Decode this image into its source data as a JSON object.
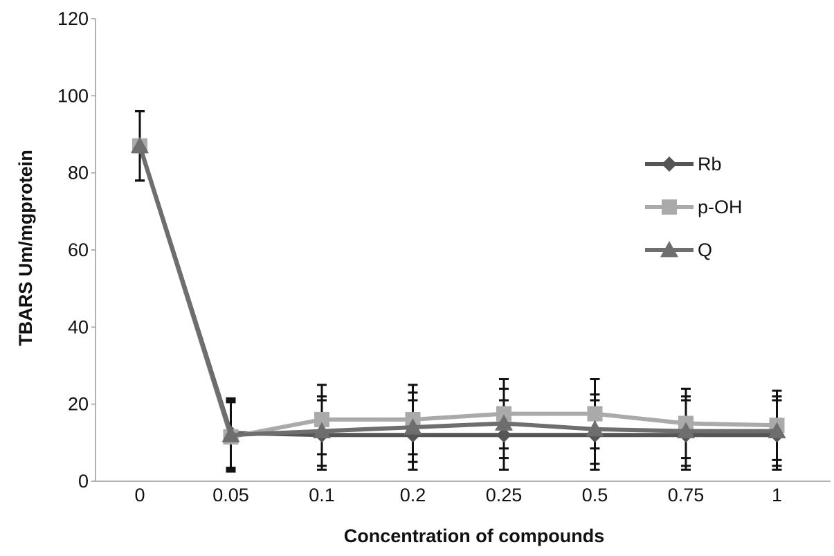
{
  "chart_data": {
    "type": "line",
    "title": "",
    "xlabel": "Concentration of compounds",
    "ylabel": "TBARS  Um/mgprotein",
    "categories": [
      "0",
      "0.05",
      "0.1",
      "0.2",
      "0.25",
      "0.5",
      "0.75",
      "1"
    ],
    "ylim": [
      0,
      120
    ],
    "yticks": [
      0,
      20,
      40,
      60,
      80,
      100,
      120
    ],
    "grid": false,
    "legend_position": "right",
    "series": [
      {
        "name": "Rb",
        "marker": "diamond",
        "color": "#555555",
        "values": [
          87,
          12.5,
          12,
          12,
          12,
          12,
          12,
          12
        ],
        "error": [
          9,
          9,
          9,
          9,
          9,
          9,
          9,
          9
        ]
      },
      {
        "name": "p-OH",
        "marker": "square",
        "color": "#aaaaaa",
        "values": [
          87,
          11.5,
          16,
          16,
          17.5,
          17.5,
          15,
          14.5
        ],
        "error": [
          9,
          9,
          9,
          9,
          9,
          9,
          9,
          9
        ]
      },
      {
        "name": "Q",
        "marker": "triangle",
        "color": "#6e6e6e",
        "values": [
          87,
          12,
          13,
          14,
          15,
          13.5,
          13,
          13
        ],
        "error": [
          9,
          9,
          9,
          9,
          9,
          9,
          9,
          9
        ]
      }
    ],
    "error_bar_color": "#111111"
  }
}
